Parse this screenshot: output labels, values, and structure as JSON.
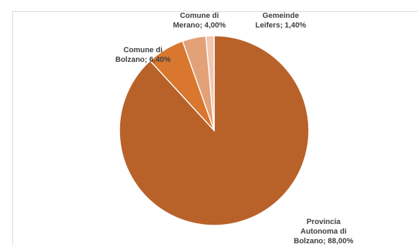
{
  "chart_data": {
    "type": "pie",
    "title": "",
    "start_angle_deg": 0,
    "direction": "clockwise",
    "legend": "none",
    "slices": [
      {
        "label": "Provincia Autonoma di Bolzano; 88,00%",
        "lines": [
          "Provincia",
          "Autonoma di",
          "Bolzano; 88,00%"
        ],
        "value": 88.0,
        "color": "#b8622a"
      },
      {
        "label": "Comune di Bolzano; 6,40%",
        "lines": [
          "Comune di",
          "Bolzano; 6,40%"
        ],
        "value": 6.4,
        "color": "#d9772f"
      },
      {
        "label": "Comune di Merano; 4,00%",
        "lines": [
          "Comune di",
          "Merano; 4,00%"
        ],
        "value": 4.0,
        "color": "#e3a178"
      },
      {
        "label": "Gemeinde Leifers; 1,40%",
        "lines": [
          "Gemeinde",
          "Leifers; 1,40%"
        ],
        "value": 1.4,
        "color": "#f2c7b0"
      }
    ]
  }
}
